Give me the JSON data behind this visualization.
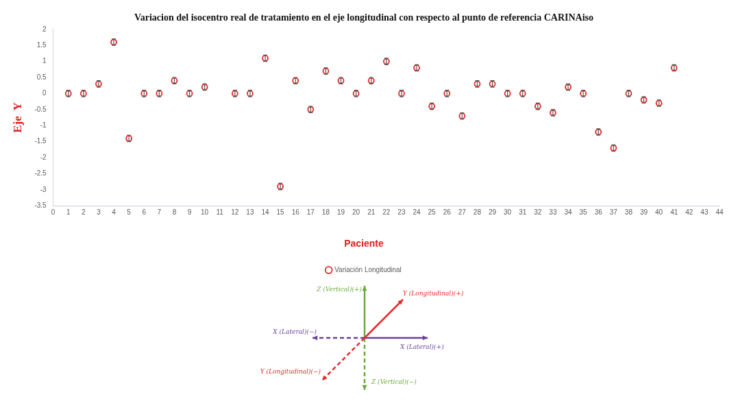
{
  "chart_data": {
    "type": "scatter",
    "title": "Variacion del isocentro real de tratamiento en el eje longitudinal con respecto al punto de referencia CARINAiso",
    "xlabel": "Paciente",
    "ylabel": "Eje  Y",
    "x": [
      1,
      2,
      3,
      4,
      5,
      6,
      7,
      8,
      9,
      10,
      12,
      13,
      14,
      15,
      16,
      17,
      18,
      19,
      20,
      21,
      22,
      23,
      24,
      25,
      26,
      27,
      28,
      29,
      30,
      31,
      32,
      33,
      34,
      35,
      36,
      37,
      38,
      39,
      40,
      41
    ],
    "series": [
      {
        "name": "Variación Longitudinal",
        "color": "#e02828",
        "values": [
          0,
          0,
          0.3,
          1.6,
          -1.4,
          0,
          0,
          0.4,
          0,
          0.2,
          0,
          0,
          1.1,
          -2.9,
          0.4,
          -0.5,
          0.7,
          0.4,
          0,
          0.4,
          1.0,
          0,
          0.8,
          -0.4,
          0,
          -0.7,
          0.3,
          0.3,
          0,
          0,
          -0.4,
          -0.6,
          0.2,
          0,
          -1.2,
          -1.7,
          0,
          -0.2,
          -0.3,
          0.8
        ],
        "errors": [
          0.1,
          0.1,
          0.1,
          0.1,
          0.1,
          0.1,
          0.1,
          0.1,
          0.1,
          0.1,
          0.1,
          0.1,
          0.1,
          0.1,
          0.1,
          0.1,
          0.1,
          0.1,
          0.1,
          0.1,
          0.1,
          0.1,
          0.1,
          0.1,
          0.1,
          0.1,
          0.1,
          0.1,
          0.1,
          0.1,
          0.1,
          0.1,
          0.1,
          0.1,
          0.1,
          0.1,
          0.1,
          0.1,
          0.1,
          0.1
        ]
      }
    ],
    "xlim": [
      0,
      44
    ],
    "xticks": [
      0,
      1,
      2,
      3,
      4,
      5,
      6,
      7,
      8,
      9,
      10,
      11,
      12,
      13,
      14,
      15,
      16,
      17,
      18,
      19,
      20,
      21,
      22,
      23,
      24,
      25,
      26,
      27,
      28,
      29,
      30,
      31,
      32,
      33,
      34,
      35,
      36,
      37,
      38,
      39,
      40,
      41,
      42,
      43,
      44
    ],
    "ylim": [
      -3.5,
      2
    ],
    "yticks": [
      -3.5,
      -3,
      -2.5,
      -2,
      -1.5,
      -1,
      -0.5,
      0,
      0.5,
      1,
      1.5,
      2
    ],
    "grid": false,
    "legend": "bottom",
    "marker": "circle",
    "annotations": [
      "Z (Vertical)(+)",
      "Y (Longitudinal)(+)",
      "X (Lateral)(−)",
      "X (Lateral)(+)",
      "Y (Longitudinal)(−)",
      "Z (Vertical)(−)"
    ]
  }
}
